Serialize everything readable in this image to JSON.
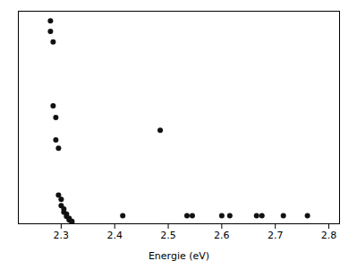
{
  "chart_data": {
    "type": "scatter",
    "x": [
      2.28,
      2.28,
      2.285,
      2.285,
      2.29,
      2.29,
      2.295,
      2.295,
      2.3,
      2.3,
      2.305,
      2.305,
      2.31,
      2.31,
      2.315,
      2.315,
      2.32,
      2.32,
      2.415,
      2.485,
      2.535,
      2.545,
      2.6,
      2.615,
      2.665,
      2.675,
      2.715,
      2.76
    ],
    "y": [
      0.955,
      0.905,
      0.855,
      0.555,
      0.5,
      0.395,
      0.355,
      0.135,
      0.115,
      0.085,
      0.07,
      0.055,
      0.045,
      0.035,
      0.025,
      0.018,
      0.012,
      0.008,
      0.038,
      0.44,
      0.038,
      0.038,
      0.038,
      0.038,
      0.038,
      0.038,
      0.038,
      0.038
    ],
    "xlim": [
      2.22,
      2.82
    ],
    "ylim": [
      0.0,
      1.0
    ],
    "xticks": [
      2.3,
      2.4,
      2.5,
      2.6,
      2.7,
      2.8
    ],
    "yticks": [],
    "xlabel": "Energie (eV)",
    "color": "#111111",
    "tick_labels": "x",
    "grid": false
  }
}
